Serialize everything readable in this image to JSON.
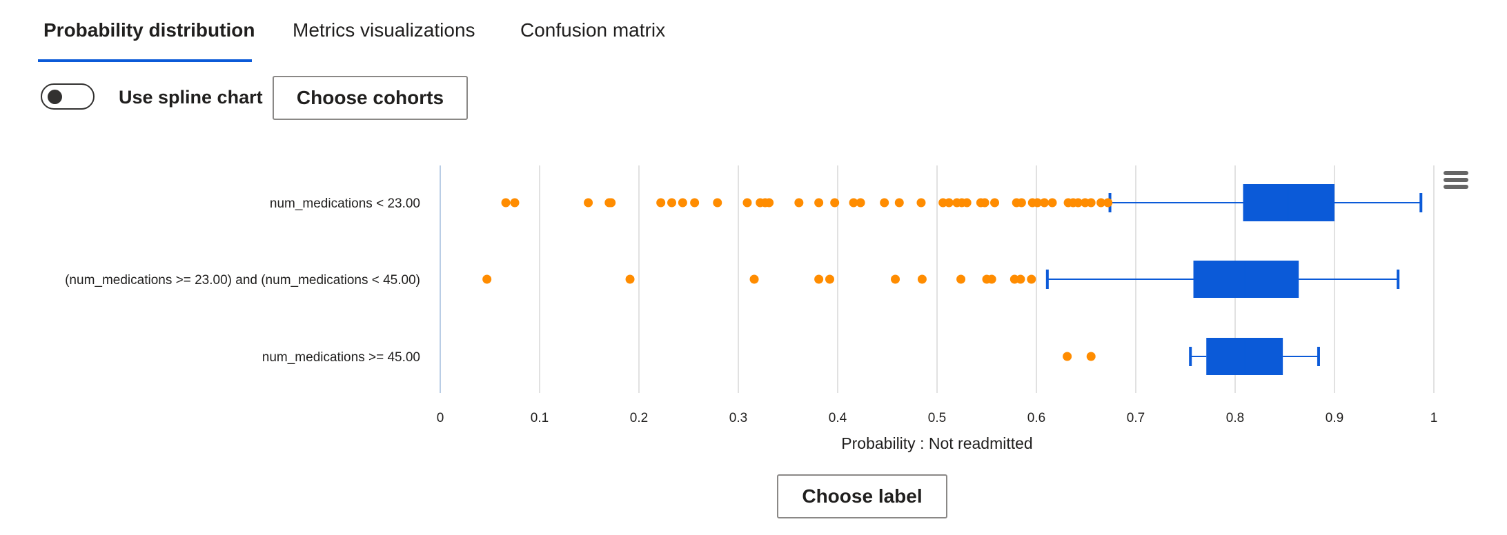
{
  "tabs": [
    {
      "label": "Probability distribution",
      "active": true
    },
    {
      "label": "Metrics visualizations",
      "active": false
    },
    {
      "label": "Confusion matrix",
      "active": false
    }
  ],
  "toggle": {
    "label": "Use spline chart",
    "on": false
  },
  "choose_cohorts_label": "Choose cohorts",
  "choose_label_label": "Choose label",
  "menu_icon": "hamburger-menu-icon",
  "colors": {
    "box": "#0b5ad8",
    "outlier": "#ff8c00",
    "grid": "#e1e1e1",
    "accent": "#0b5ad8"
  },
  "chart_data": {
    "type": "boxplot",
    "orientation": "horizontal",
    "xlabel": "Probability : Not readmitted",
    "xlim": [
      0,
      1
    ],
    "xticks": [
      "0",
      "0.1",
      "0.2",
      "0.3",
      "0.4",
      "0.5",
      "0.6",
      "0.7",
      "0.8",
      "0.9",
      "1"
    ],
    "grid": true,
    "categories": [
      "num_medications < 23.00",
      "(num_medications >= 23.00) and (num_medications < 45.00)",
      "num_medications >= 45.00"
    ],
    "boxes": [
      {
        "min": 0.674,
        "q1": 0.808,
        "median": 0.853,
        "q3": 0.9,
        "max": 0.987,
        "outliers": [
          0.066,
          0.075,
          0.149,
          0.17,
          0.172,
          0.222,
          0.233,
          0.244,
          0.256,
          0.279,
          0.309,
          0.322,
          0.327,
          0.331,
          0.361,
          0.381,
          0.397,
          0.416,
          0.423,
          0.447,
          0.462,
          0.484,
          0.506,
          0.512,
          0.52,
          0.525,
          0.53,
          0.544,
          0.548,
          0.558,
          0.58,
          0.585,
          0.596,
          0.601,
          0.608,
          0.616,
          0.632,
          0.637,
          0.642,
          0.649,
          0.655,
          0.665,
          0.672
        ]
      },
      {
        "min": 0.611,
        "q1": 0.758,
        "median": 0.81,
        "q3": 0.864,
        "max": 0.964,
        "outliers": [
          0.047,
          0.191,
          0.316,
          0.381,
          0.392,
          0.458,
          0.485,
          0.524,
          0.55,
          0.555,
          0.578,
          0.584,
          0.595
        ]
      },
      {
        "min": 0.755,
        "q1": 0.771,
        "median": 0.81,
        "q3": 0.848,
        "max": 0.884,
        "outliers": [
          0.631,
          0.655
        ]
      }
    ]
  }
}
